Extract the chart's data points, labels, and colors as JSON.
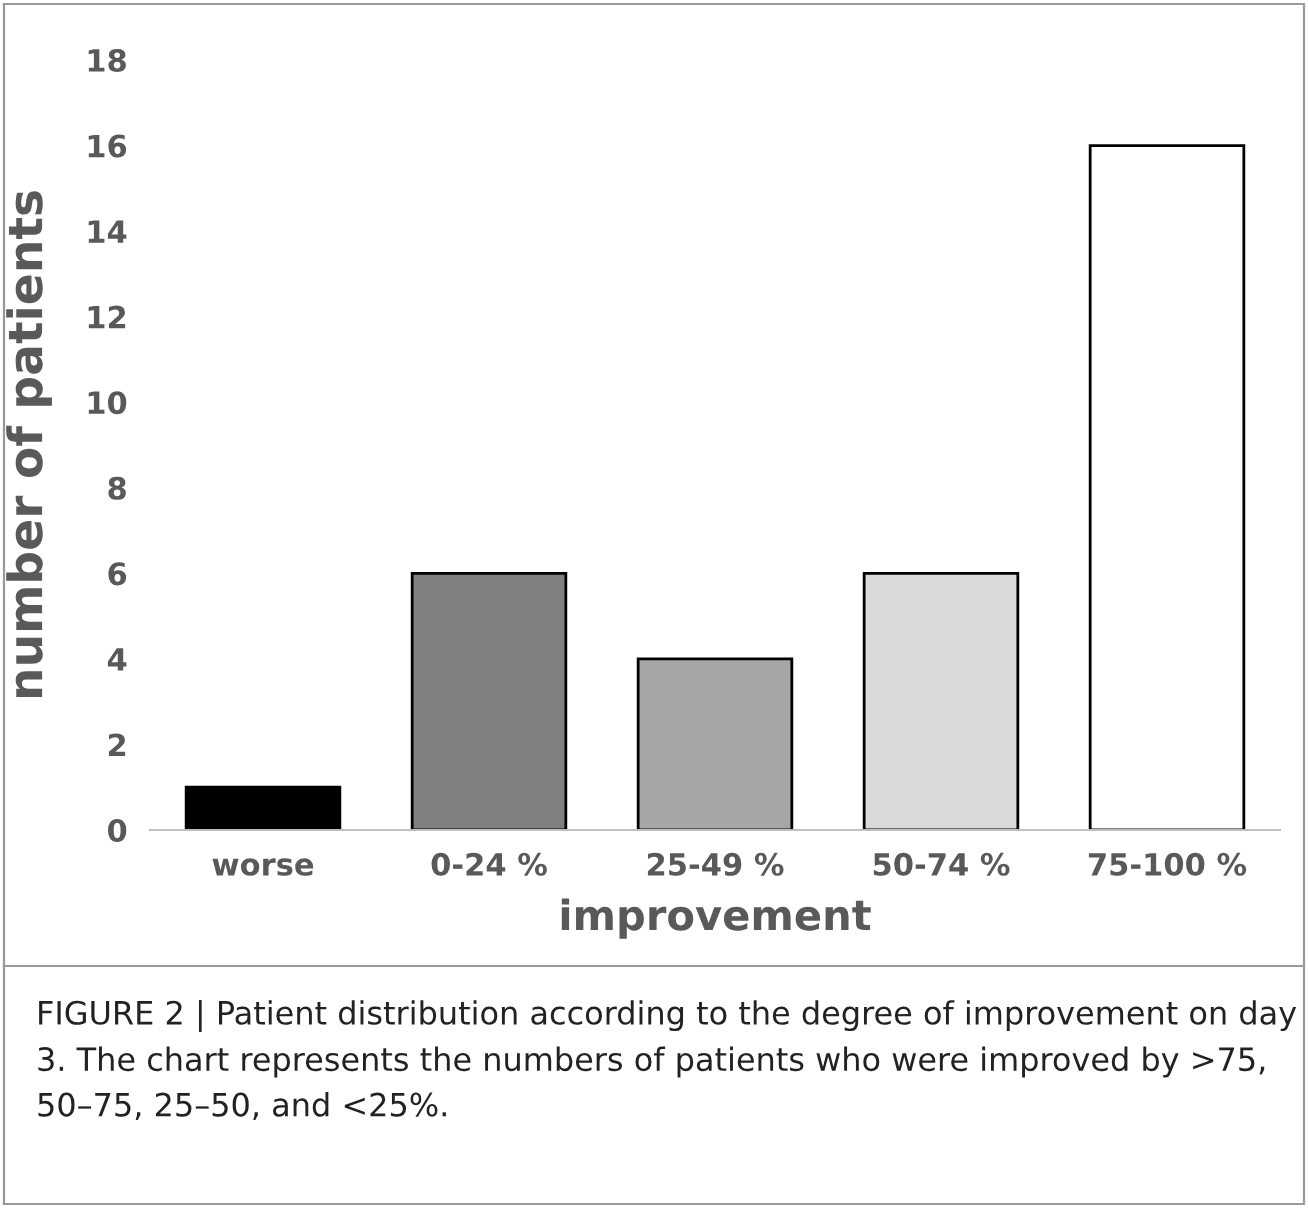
{
  "chart_data": {
    "type": "bar",
    "xlabel": "improvement",
    "ylabel": "number of patients",
    "categories": [
      "worse",
      "0-24 %",
      "25-49 %",
      "50-74 %",
      "75-100 %"
    ],
    "values": [
      1,
      6,
      4,
      6,
      16
    ],
    "colors": [
      "#000000",
      "#808080",
      "#a6a6a6",
      "#d9d9d9",
      "#ffffff"
    ],
    "ylim": [
      0,
      18
    ],
    "yticks": [
      0,
      2,
      4,
      6,
      8,
      10,
      12,
      14,
      16,
      18
    ],
    "grid": false,
    "legend": false,
    "annotations": [
      "FIGURE 2 | Patient distribution according to the degree of improvement on day 3. The chart represents the numbers of patients who were improved by >75, 50–75, 25–50, and <25%."
    ]
  }
}
